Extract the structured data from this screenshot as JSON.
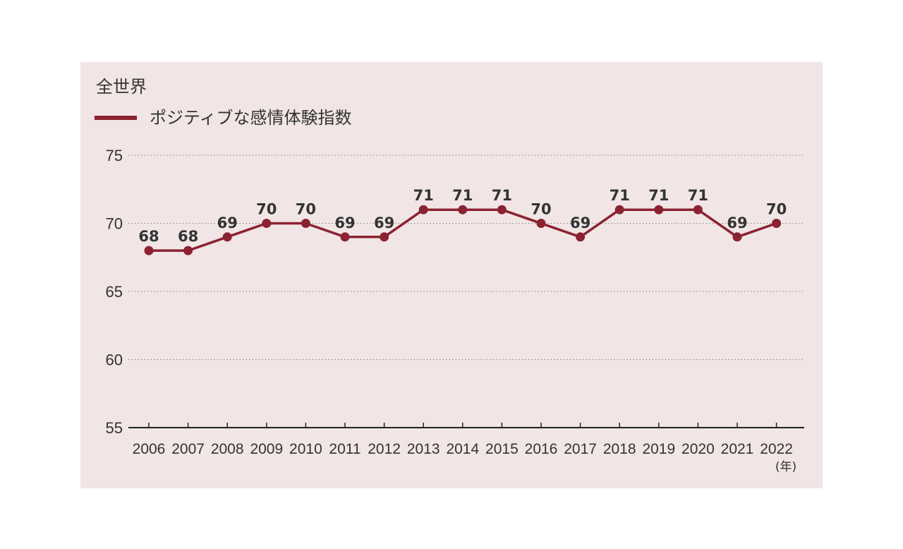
{
  "chart_data": {
    "type": "line",
    "title": "全世界",
    "x": [
      "2006",
      "2007",
      "2008",
      "2009",
      "2010",
      "2011",
      "2012",
      "2013",
      "2014",
      "2015",
      "2016",
      "2017",
      "2018",
      "2019",
      "2020",
      "2021",
      "2022"
    ],
    "xunit": "(年)",
    "series": [
      {
        "name": "ポジティブな感情体験指数",
        "color": "#8b2232",
        "values": [
          68,
          68,
          69,
          70,
          70,
          69,
          69,
          71,
          71,
          71,
          70,
          69,
          71,
          71,
          71,
          69,
          70
        ]
      }
    ],
    "ylim": [
      55,
      75
    ],
    "yticks": [
      "55",
      "60",
      "65",
      "70",
      "75"
    ],
    "grid": "horizontal dotted",
    "legend": "top-left",
    "background": "#f1e5e5"
  }
}
